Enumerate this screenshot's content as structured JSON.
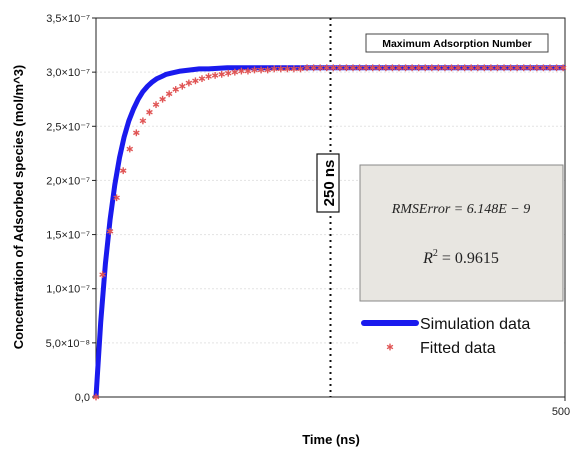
{
  "chart_data": {
    "type": "line",
    "xlabel": "Time (ns)",
    "ylabel": "Concentration of Adsorbed species (mol/m^3)",
    "xlim": [
      0,
      500
    ],
    "ylim": [
      0,
      3.5e-07
    ],
    "x_tick_labels": [
      {
        "value": 500,
        "label": "500"
      }
    ],
    "y_tick_labels": [
      {
        "value": 0,
        "label": "0,0"
      },
      {
        "value": 5e-08,
        "label": "5,0×10⁻⁸"
      },
      {
        "value": 1e-07,
        "label": "1,0×10⁻⁷"
      },
      {
        "value": 1.5e-07,
        "label": "1,5×10⁻⁷"
      },
      {
        "value": 2e-07,
        "label": "2,0×10⁻⁷"
      },
      {
        "value": 2.5e-07,
        "label": "2,5×10⁻⁷"
      },
      {
        "value": 3e-07,
        "label": "3,0×10⁻⁷"
      },
      {
        "value": 3.5e-07,
        "label": "3,5×10⁻⁷"
      }
    ],
    "grid": true,
    "legend_position": "bottom-right",
    "series": [
      {
        "name": "Simulation data",
        "style": "line",
        "color": "#1a1aee",
        "x": [
          0,
          5,
          10,
          15,
          20,
          25,
          30,
          35,
          40,
          45,
          50,
          55,
          60,
          65,
          70,
          75,
          80,
          90,
          100,
          110,
          120,
          140,
          160,
          180,
          200,
          250,
          300,
          350,
          400,
          450,
          500
        ],
        "y": [
          0,
          6.9e-08,
          1.23e-07,
          1.64e-07,
          1.96e-07,
          2.21e-07,
          2.4e-07,
          2.55e-07,
          2.66e-07,
          2.75e-07,
          2.82e-07,
          2.87e-07,
          2.91e-07,
          2.94e-07,
          2.96e-07,
          2.98e-07,
          2.99e-07,
          3.01e-07,
          3.02e-07,
          3.03e-07,
          3.03e-07,
          3.04e-07,
          3.04e-07,
          3.04e-07,
          3.04e-07,
          3.04e-07,
          3.04e-07,
          3.04e-07,
          3.04e-07,
          3.04e-07,
          3.04e-07
        ]
      },
      {
        "name": "Fitted data",
        "style": "markers",
        "marker": "asterisk",
        "color": "#e05555",
        "x": [
          0,
          7,
          15,
          22,
          29,
          36,
          43,
          50,
          57,
          64,
          71,
          78,
          85,
          92,
          99,
          106,
          113,
          120,
          127,
          134,
          141,
          148,
          155,
          162,
          169,
          176,
          183,
          190,
          197,
          204,
          211,
          218,
          225,
          232,
          239,
          246,
          253,
          260,
          267,
          274,
          281,
          288,
          295,
          302,
          309,
          316,
          323,
          330,
          337,
          344,
          351,
          358,
          365,
          372,
          379,
          386,
          393,
          400,
          407,
          414,
          421,
          428,
          435,
          442,
          449,
          456,
          463,
          470,
          477,
          484,
          491,
          498
        ],
        "y": [
          0,
          1.13e-07,
          1.53e-07,
          1.84e-07,
          2.09e-07,
          2.29e-07,
          2.44e-07,
          2.55e-07,
          2.63e-07,
          2.7e-07,
          2.75e-07,
          2.8e-07,
          2.84e-07,
          2.87e-07,
          2.9e-07,
          2.92e-07,
          2.94e-07,
          2.96e-07,
          2.97e-07,
          2.98e-07,
          2.99e-07,
          3e-07,
          3.01e-07,
          3.01e-07,
          3.02e-07,
          3.02e-07,
          3.02e-07,
          3.03e-07,
          3.03e-07,
          3.03e-07,
          3.03e-07,
          3.03e-07,
          3.04e-07,
          3.04e-07,
          3.04e-07,
          3.04e-07,
          3.04e-07,
          3.04e-07,
          3.04e-07,
          3.04e-07,
          3.04e-07,
          3.04e-07,
          3.04e-07,
          3.04e-07,
          3.04e-07,
          3.04e-07,
          3.04e-07,
          3.04e-07,
          3.04e-07,
          3.04e-07,
          3.04e-07,
          3.04e-07,
          3.04e-07,
          3.04e-07,
          3.04e-07,
          3.04e-07,
          3.04e-07,
          3.04e-07,
          3.04e-07,
          3.04e-07,
          3.04e-07,
          3.04e-07,
          3.04e-07,
          3.04e-07,
          3.04e-07,
          3.04e-07,
          3.04e-07,
          3.04e-07,
          3.04e-07,
          3.04e-07,
          3.04e-07,
          3.04e-07
        ]
      }
    ],
    "vertical_line": {
      "x": 250,
      "label": "250 ns",
      "style": "dotted"
    },
    "annotations": {
      "max_label": "Maximum Adsorption Number",
      "rmse_text": "RMSError = 6.148E − 9",
      "r2_symbol": "R",
      "r2_exp": "2",
      "r2_value": " = 0.9615",
      "stats_box_color": "#e8e6e1"
    }
  }
}
